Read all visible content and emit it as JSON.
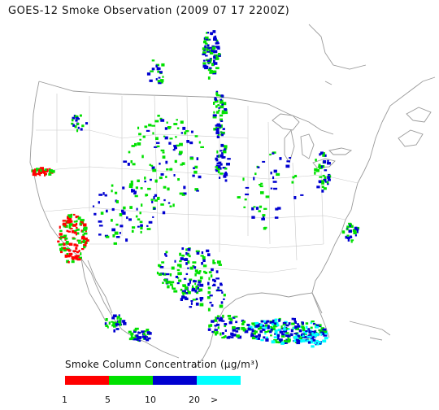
{
  "title": "GOES-12 Smoke Observation (2009 07 17  2200Z)",
  "legend": {
    "title": "Smoke Column Concentration (μg/m³)",
    "bins": [
      {
        "color": "#ff0000"
      },
      {
        "color": "#00e000"
      },
      {
        "color": "#0000d0"
      },
      {
        "color": "#00ffff"
      }
    ],
    "ticks": [
      "1",
      "5",
      "10",
      "20",
      ">"
    ]
  },
  "colors": {
    "coastline": "#9a9a9a",
    "state_borders": "#c8c8c8",
    "background": "#ffffff"
  }
}
